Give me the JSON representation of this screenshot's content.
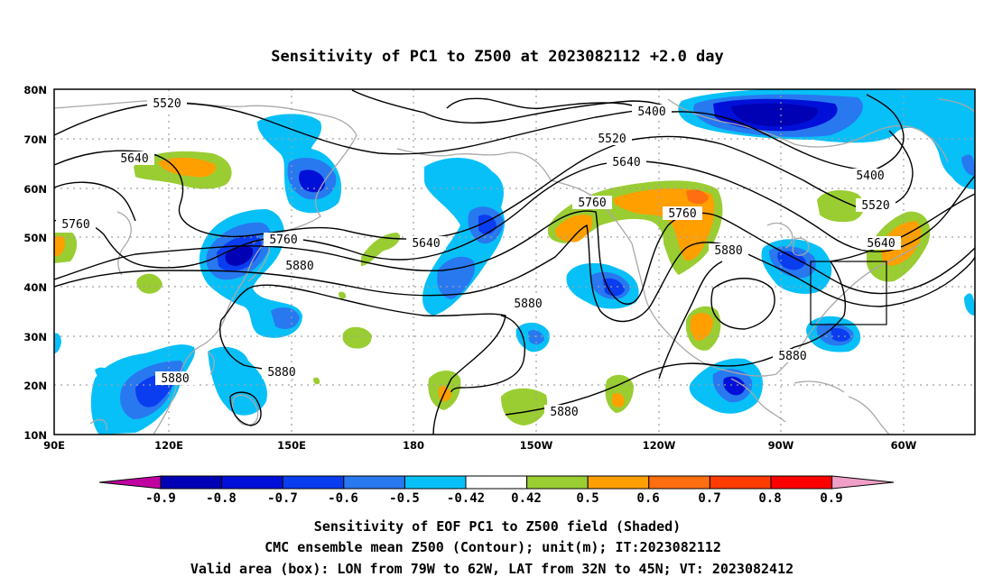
{
  "title": "Sensitivity of PC1 to Z500 at 2023082112 +2.0 day",
  "map": {
    "lat_ticks": [
      "80N",
      "70N",
      "60N",
      "50N",
      "40N",
      "30N",
      "20N",
      "10N"
    ],
    "lon_ticks": [
      "90E",
      "120E",
      "150E",
      "180",
      "150W",
      "120W",
      "90W",
      "60W"
    ],
    "contour_labels": [
      {
        "text": "5520"
      },
      {
        "text": "5640"
      },
      {
        "text": "5760"
      },
      {
        "text": "5760"
      },
      {
        "text": "5880"
      },
      {
        "text": "5880"
      },
      {
        "text": "5880"
      },
      {
        "text": "5640"
      },
      {
        "text": "5400"
      },
      {
        "text": "5520"
      },
      {
        "text": "5640"
      },
      {
        "text": "5760"
      },
      {
        "text": "5760"
      },
      {
        "text": "5880"
      },
      {
        "text": "5880"
      },
      {
        "text": "5880"
      },
      {
        "text": "5400"
      },
      {
        "text": "5520"
      },
      {
        "text": "5640"
      },
      {
        "text": "5880"
      }
    ],
    "valid_box": {
      "lon_from": "79W",
      "lon_to": "62W",
      "lat_from": "32N",
      "lat_to": "45N"
    }
  },
  "colorbar": {
    "labels": [
      "-0.9",
      "-0.8",
      "-0.7",
      "-0.6",
      "-0.5",
      "-0.42",
      "0.42",
      "0.5",
      "0.6",
      "0.7",
      "0.8",
      "0.9"
    ],
    "colors": [
      "#c000a0",
      "#0000b4",
      "#0010d8",
      "#0a3cf0",
      "#2878f0",
      "#08c0f8",
      "#ffffff",
      "#9acd32",
      "#ff9f00",
      "#ff6e10",
      "#ff3c00",
      "#ff0000",
      "#f0a0c8"
    ]
  },
  "caption": {
    "line1": "Sensitivity of EOF PC1 to Z500 field (Shaded)",
    "line2": "CMC ensemble mean Z500 (Contour); unit(m); IT:2023082112",
    "line3": "Valid area (box): LON from 79W to 62W, LAT from 32N to 45N; VT: 2023082412"
  },
  "colors": {
    "contour": "#000000",
    "coastline": "#a8a8a8",
    "grid": "#a0a0a0",
    "frame": "#000000"
  }
}
